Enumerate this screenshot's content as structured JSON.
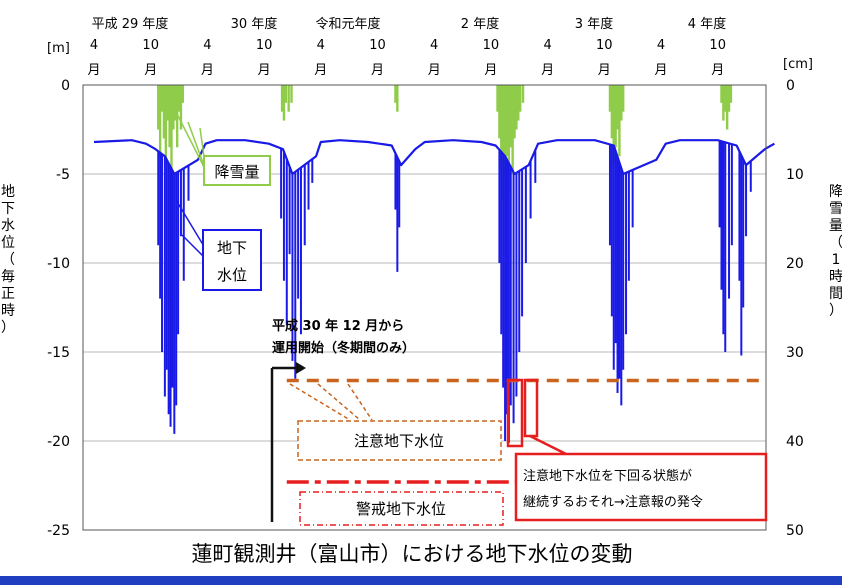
{
  "chart_data": {
    "type": "line",
    "title": "蓮町観測井（富山市）における地下水位の変動",
    "fiscal_years": [
      "平成 29 年度",
      "30 年度",
      "令和元年度",
      "2 年度",
      "3 年度",
      "4 年度"
    ],
    "month_ticks": [
      {
        "num": "4",
        "unit": "月"
      },
      {
        "num": "10",
        "unit": "月"
      },
      {
        "num": "4",
        "unit": "月"
      },
      {
        "num": "10",
        "unit": "月"
      },
      {
        "num": "4",
        "unit": "月"
      },
      {
        "num": "10",
        "unit": "月"
      },
      {
        "num": "4",
        "unit": "月"
      },
      {
        "num": "10",
        "unit": "月"
      },
      {
        "num": "4",
        "unit": "月"
      },
      {
        "num": "10",
        "unit": "月"
      },
      {
        "num": "4",
        "unit": "月"
      },
      {
        "num": "10",
        "unit": "月"
      }
    ],
    "y_left": {
      "unit": "[m]",
      "ticks": [
        "0",
        "-5",
        "-10",
        "-15",
        "-20",
        "-25"
      ],
      "range": [
        -25,
        0
      ],
      "label": [
        "地",
        "下",
        "水",
        "位",
        "（",
        "毎",
        "正",
        "時",
        "）"
      ]
    },
    "y_right": {
      "unit": "[cm]",
      "ticks": [
        "0",
        "10",
        "20",
        "30",
        "40",
        "50"
      ],
      "range": [
        0,
        50
      ],
      "label": [
        "降",
        "雪",
        "量",
        "（",
        "1",
        "時",
        "間",
        "）"
      ]
    },
    "x_range_months": [
      0,
      72
    ],
    "groundwater_baseline": [
      [
        0,
        -3.2
      ],
      [
        4,
        -3.1
      ],
      [
        5.5,
        -3.3
      ],
      [
        6.5,
        -3.6
      ],
      [
        7.5,
        -4.0
      ],
      [
        8.5,
        -5.0
      ],
      [
        11,
        -4.2
      ],
      [
        11.8,
        -3.3
      ],
      [
        13,
        -3.1
      ],
      [
        16,
        -3.1
      ],
      [
        18.5,
        -3.3
      ],
      [
        20,
        -3.6
      ],
      [
        21,
        -5.0
      ],
      [
        23.5,
        -4.0
      ],
      [
        24,
        -3.2
      ],
      [
        26,
        -3.1
      ],
      [
        29,
        -3.2
      ],
      [
        31.5,
        -3.4
      ],
      [
        32.5,
        -4.5
      ],
      [
        34,
        -3.6
      ],
      [
        35,
        -3.2
      ],
      [
        38,
        -3.1
      ],
      [
        41,
        -3.2
      ],
      [
        42.5,
        -3.4
      ],
      [
        43.5,
        -4.0
      ],
      [
        44.5,
        -5.0
      ],
      [
        46,
        -4.5
      ],
      [
        47,
        -3.3
      ],
      [
        49,
        -3.1
      ],
      [
        53,
        -3.1
      ],
      [
        55,
        -3.4
      ],
      [
        56,
        -5.0
      ],
      [
        59.5,
        -4.2
      ],
      [
        60.5,
        -3.3
      ],
      [
        62,
        -3.1
      ],
      [
        66,
        -3.1
      ],
      [
        68,
        -3.4
      ],
      [
        69,
        -4.5
      ],
      [
        71,
        -3.6
      ],
      [
        72,
        -3.3
      ]
    ],
    "groundwater_drops": [
      [
        6.8,
        -9.0
      ],
      [
        7.0,
        -12.0
      ],
      [
        7.2,
        -15.0
      ],
      [
        7.5,
        -17.5
      ],
      [
        7.7,
        -16.0
      ],
      [
        7.9,
        -18.5
      ],
      [
        8.1,
        -19.2
      ],
      [
        8.3,
        -17.0
      ],
      [
        8.5,
        -19.6
      ],
      [
        8.7,
        -18.0
      ],
      [
        8.9,
        -14.0
      ],
      [
        9.2,
        -8.5
      ],
      [
        9.5,
        -11.0
      ],
      [
        10.0,
        -6.5
      ],
      [
        19.8,
        -7.5
      ],
      [
        20.1,
        -11.0
      ],
      [
        20.4,
        -13.5
      ],
      [
        20.7,
        -9.5
      ],
      [
        21.0,
        -15.5
      ],
      [
        21.3,
        -16.5
      ],
      [
        21.6,
        -12.0
      ],
      [
        21.9,
        -14.0
      ],
      [
        22.3,
        -9.0
      ],
      [
        22.7,
        -7.0
      ],
      [
        23.1,
        -5.5
      ],
      [
        31.9,
        -7.0
      ],
      [
        32.1,
        -10.5
      ],
      [
        32.3,
        -8.0
      ],
      [
        42.9,
        -10.0
      ],
      [
        43.1,
        -14.0
      ],
      [
        43.3,
        -17.0
      ],
      [
        43.5,
        -20.0
      ],
      [
        43.7,
        -18.5
      ],
      [
        43.9,
        -20.1
      ],
      [
        44.1,
        -18.0
      ],
      [
        44.4,
        -19.0
      ],
      [
        44.7,
        -17.5
      ],
      [
        45.0,
        -15.0
      ],
      [
        45.3,
        -13.0
      ],
      [
        45.7,
        -10.0
      ],
      [
        46.2,
        -7.5
      ],
      [
        46.7,
        -5.5
      ],
      [
        54.6,
        -9.0
      ],
      [
        54.8,
        -13.0
      ],
      [
        55.0,
        -16.0
      ],
      [
        55.2,
        -14.5
      ],
      [
        55.4,
        -17.3
      ],
      [
        55.6,
        -16.5
      ],
      [
        55.8,
        -18.0
      ],
      [
        56.0,
        -16.0
      ],
      [
        56.3,
        -14.0
      ],
      [
        56.6,
        -11.0
      ],
      [
        57.0,
        -8.0
      ],
      [
        66.2,
        -8.0
      ],
      [
        66.4,
        -11.5
      ],
      [
        66.6,
        -14.0
      ],
      [
        66.8,
        -15.0
      ],
      [
        67.2,
        -12.0
      ],
      [
        67.5,
        -9.0
      ],
      [
        68.3,
        -11.0
      ],
      [
        68.5,
        -15.2
      ],
      [
        68.7,
        -12.5
      ],
      [
        69.0,
        -8.5
      ],
      [
        69.5,
        -6.0
      ]
    ],
    "snowfall_bars": [
      [
        6.8,
        5
      ],
      [
        7.0,
        8
      ],
      [
        7.2,
        3
      ],
      [
        7.4,
        6
      ],
      [
        7.6,
        9
      ],
      [
        7.8,
        4
      ],
      [
        8.0,
        7
      ],
      [
        8.2,
        10
      ],
      [
        8.4,
        5
      ],
      [
        8.6,
        4
      ],
      [
        8.8,
        7
      ],
      [
        9.0,
        3
      ],
      [
        9.2,
        5
      ],
      [
        9.4,
        2
      ],
      [
        19.9,
        3
      ],
      [
        20.1,
        4
      ],
      [
        20.3,
        2
      ],
      [
        20.6,
        3
      ],
      [
        20.9,
        2
      ],
      [
        31.9,
        2
      ],
      [
        32.1,
        3
      ],
      [
        42.7,
        3
      ],
      [
        42.9,
        6
      ],
      [
        43.1,
        9
      ],
      [
        43.3,
        13
      ],
      [
        43.5,
        11
      ],
      [
        43.7,
        8
      ],
      [
        43.9,
        12
      ],
      [
        44.1,
        7
      ],
      [
        44.3,
        10
      ],
      [
        44.5,
        6
      ],
      [
        44.7,
        5
      ],
      [
        44.9,
        4
      ],
      [
        45.1,
        3
      ],
      [
        45.4,
        2
      ],
      [
        54.6,
        3
      ],
      [
        54.8,
        6
      ],
      [
        55.0,
        9
      ],
      [
        55.2,
        7
      ],
      [
        55.4,
        5
      ],
      [
        55.6,
        8
      ],
      [
        55.8,
        4
      ],
      [
        56.0,
        3
      ],
      [
        66.4,
        2
      ],
      [
        66.6,
        4
      ],
      [
        66.8,
        3
      ],
      [
        67.0,
        5
      ],
      [
        67.2,
        3
      ],
      [
        67.4,
        2
      ]
    ],
    "caution_level": -16.6,
    "warning_level": -22.3,
    "annotations": {
      "snow_label": "降雪量",
      "gw_label_1": "地下",
      "gw_label_2": "水位",
      "operation_note_1": "平成 30 年 12 月から",
      "operation_note_2": "運用開始（冬期間のみ）",
      "caution_label": "注意地下水位",
      "warning_label": "警戒地下水位",
      "alert_note_1": "注意地下水位を下回る状態が",
      "alert_note_2": "継続するおそれ→注意報の発令"
    },
    "colors": {
      "groundwater": "#1a1ae6",
      "snow": "#8fcc4a",
      "caution": "#c8641e",
      "warning": "#e61e1e",
      "axis_frame": "#555555",
      "grid": "#b8b8b8"
    }
  }
}
